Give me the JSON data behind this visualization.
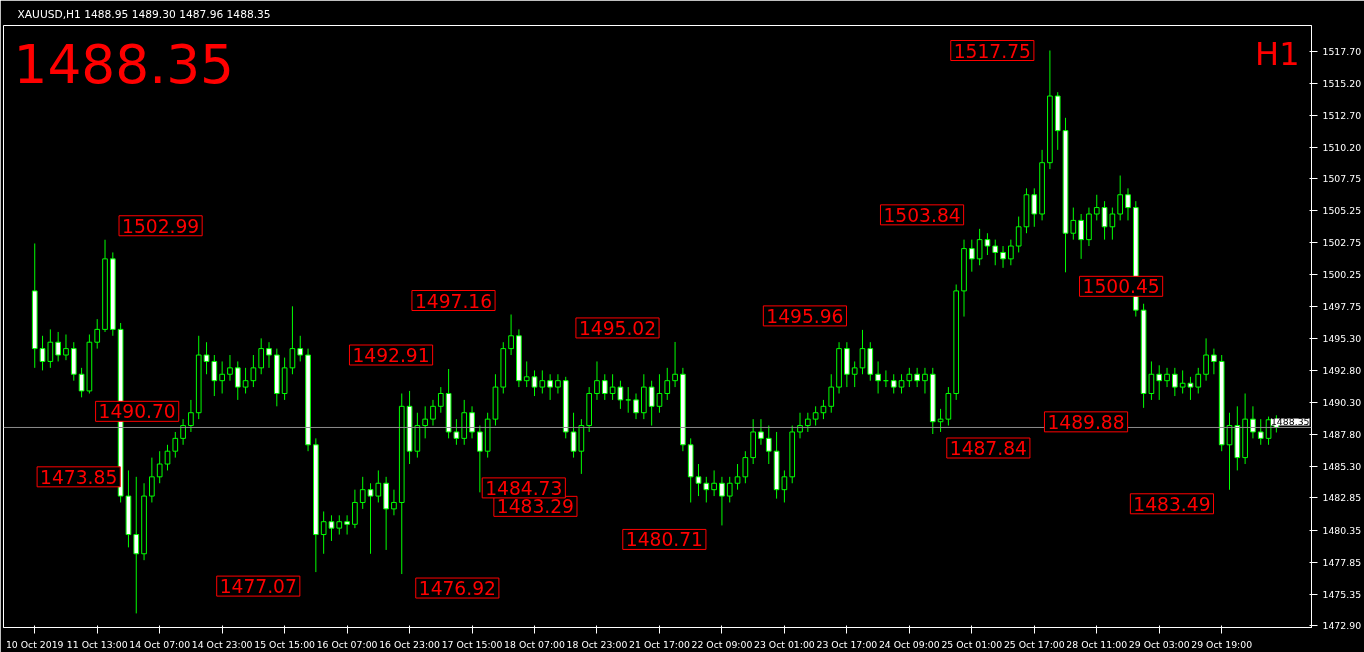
{
  "chart_data": {
    "type": "candlestick",
    "title": "XAUUSD,H1  1488.95 1489.30 1487.96 1488.35",
    "color": "#00ff00",
    "categories": [
      "10 Oct 2019",
      null,
      null,
      null,
      null,
      null,
      null,
      null,
      "11 Oct 13:00",
      null,
      null,
      null,
      null,
      null,
      null,
      null,
      "14 Oct 07:00",
      null,
      null,
      null,
      null,
      null,
      null,
      null,
      "14 Oct 23:00",
      null,
      null,
      null,
      null,
      null,
      null,
      null,
      "15 Oct 15:00",
      null,
      null,
      null,
      null,
      null,
      null,
      null,
      "16 Oct 07:00",
      null,
      null,
      null,
      null,
      null,
      null,
      null,
      "16 Oct 23:00",
      null,
      null,
      null,
      null,
      null,
      null,
      null,
      "17 Oct 15:00",
      null,
      null,
      null,
      null,
      null,
      null,
      null,
      "18 Oct 07:00",
      null,
      null,
      null,
      null,
      null,
      null,
      null,
      "18 Oct 23:00",
      null,
      null,
      null,
      null,
      null,
      null,
      null,
      "21 Oct 17:00",
      null,
      null,
      null,
      null,
      null,
      null,
      null,
      "22 Oct 09:00",
      null,
      null,
      null,
      null,
      null,
      null,
      null,
      "23 Oct 01:00",
      null,
      null,
      null,
      null,
      null,
      null,
      null,
      "23 Oct 17:00",
      null,
      null,
      null,
      null,
      null,
      null,
      null,
      "24 Oct 09:00",
      null,
      null,
      null,
      null,
      null,
      null,
      null,
      "25 Oct 01:00",
      null,
      null,
      null,
      null,
      null,
      null,
      null,
      "25 Oct 17:00",
      null,
      null,
      null,
      null,
      null,
      null,
      null,
      "28 Oct 11:00",
      null,
      null,
      null,
      null,
      null,
      null,
      null,
      "29 Oct 03:00",
      null,
      null,
      null,
      null,
      null,
      null,
      null,
      "29 Oct 19:00",
      null,
      null,
      null,
      null,
      null,
      null,
      null
    ],
    "ylim": [
      1472.75,
      1519.7
    ],
    "yticks": [
      {
        "value": 1517.7,
        "label": "1517.70"
      },
      {
        "value": 1515.2,
        "label": "1515.20"
      },
      {
        "value": 1512.7,
        "label": "1512.70"
      },
      {
        "value": 1510.2,
        "label": "1510.20"
      },
      {
        "value": 1507.75,
        "label": "1507.75"
      },
      {
        "value": 1505.25,
        "label": "1505.25"
      },
      {
        "value": 1502.75,
        "label": "1502.75"
      },
      {
        "value": 1500.25,
        "label": "1500.25"
      },
      {
        "value": 1497.75,
        "label": "1497.75"
      },
      {
        "value": 1495.3,
        "label": "1495.30"
      },
      {
        "value": 1492.8,
        "label": "1492.80"
      },
      {
        "value": 1490.3,
        "label": "1490.30"
      },
      {
        "value": 1487.8,
        "label": "1487.80"
      },
      {
        "value": 1485.3,
        "label": "1485.30"
      },
      {
        "value": 1482.85,
        "label": "1482.85"
      },
      {
        "value": 1480.35,
        "label": "1480.35"
      },
      {
        "value": 1477.85,
        "label": "1477.85"
      },
      {
        "value": 1475.35,
        "label": "1475.35"
      },
      {
        "value": 1472.9,
        "label": "1472.90"
      }
    ],
    "ref_lines": [
      {
        "axis": "y",
        "value": 1488.35,
        "label": "1488.35",
        "color": "#8c8c8c"
      }
    ],
    "annotations": [
      "1488.35",
      "H1",
      "1490.70",
      "1502.99",
      "1473.85",
      "1477.07",
      "1476.92",
      "1492.91",
      "1483.29",
      "1497.16",
      "1484.73",
      "1495.02",
      "1480.71",
      "1495.96",
      "1487.84",
      "1503.84",
      "1517.75",
      "1500.45",
      "1489.88",
      "1483.49"
    ],
    "ohlc": [
      [
        1499.0,
        1502.7,
        1493.0,
        1494.5
      ],
      [
        1494.5,
        1495.5,
        1492.8,
        1493.5
      ],
      [
        1493.5,
        1496.0,
        1493.0,
        1495.0
      ],
      [
        1495.0,
        1495.8,
        1493.5,
        1494.0
      ],
      [
        1494.0,
        1495.6,
        1493.6,
        1494.5
      ],
      [
        1494.5,
        1495.0,
        1492.0,
        1492.5
      ],
      [
        1492.5,
        1493.0,
        1490.7,
        1491.2
      ],
      [
        1491.2,
        1495.6,
        1491.0,
        1495.0
      ],
      [
        1495.0,
        1496.8,
        1494.5,
        1496.0
      ],
      [
        1496.0,
        1502.99,
        1495.8,
        1501.5
      ],
      [
        1501.5,
        1502.0,
        1495.5,
        1496.0
      ],
      [
        1496.0,
        1496.5,
        1482.5,
        1483.0
      ],
      [
        1483.0,
        1485.0,
        1479.0,
        1480.0
      ],
      [
        1480.0,
        1484.5,
        1473.85,
        1478.5
      ],
      [
        1478.5,
        1484.0,
        1478.0,
        1483.0
      ],
      [
        1483.0,
        1486.0,
        1482.5,
        1484.5
      ],
      [
        1484.5,
        1486.5,
        1484.0,
        1485.5
      ],
      [
        1485.5,
        1487.0,
        1485.0,
        1486.5
      ],
      [
        1486.5,
        1488.0,
        1486.0,
        1487.5
      ],
      [
        1487.5,
        1489.0,
        1487.0,
        1488.5
      ],
      [
        1488.5,
        1490.5,
        1488.0,
        1489.5
      ],
      [
        1489.5,
        1495.5,
        1489.0,
        1494.0
      ],
      [
        1494.0,
        1495.0,
        1492.5,
        1493.5
      ],
      [
        1493.5,
        1494.0,
        1490.8,
        1492.0
      ],
      [
        1492.0,
        1493.5,
        1491.0,
        1492.5
      ],
      [
        1492.5,
        1494.0,
        1492.0,
        1493.0
      ],
      [
        1493.0,
        1493.5,
        1490.5,
        1491.5
      ],
      [
        1491.5,
        1493.0,
        1491.0,
        1492.0
      ],
      [
        1492.0,
        1494.0,
        1491.5,
        1493.0
      ],
      [
        1493.0,
        1495.3,
        1492.5,
        1494.5
      ],
      [
        1494.5,
        1495.0,
        1493.0,
        1494.0
      ],
      [
        1494.0,
        1494.5,
        1490.0,
        1491.0
      ],
      [
        1491.0,
        1493.8,
        1490.5,
        1493.0
      ],
      [
        1493.0,
        1497.8,
        1492.5,
        1494.5
      ],
      [
        1494.5,
        1495.5,
        1493.5,
        1494.0
      ],
      [
        1494.0,
        1494.5,
        1486.5,
        1487.0
      ],
      [
        1487.0,
        1487.5,
        1477.07,
        1480.0
      ],
      [
        1480.0,
        1481.8,
        1478.5,
        1481.0
      ],
      [
        1481.0,
        1481.5,
        1479.5,
        1480.5
      ],
      [
        1480.5,
        1481.5,
        1480.0,
        1481.0
      ],
      [
        1481.0,
        1481.5,
        1480.0,
        1480.8
      ],
      [
        1480.8,
        1483.5,
        1480.5,
        1482.5
      ],
      [
        1482.5,
        1484.5,
        1482.0,
        1483.5
      ],
      [
        1483.5,
        1484.0,
        1478.5,
        1483.0
      ],
      [
        1483.0,
        1485.0,
        1482.5,
        1484.0
      ],
      [
        1484.0,
        1484.5,
        1478.8,
        1482.0
      ],
      [
        1482.0,
        1483.5,
        1481.5,
        1482.5
      ],
      [
        1482.5,
        1491.0,
        1476.92,
        1490.0
      ],
      [
        1490.0,
        1491.2,
        1485.5,
        1486.5
      ],
      [
        1486.5,
        1489.5,
        1486.0,
        1488.5
      ],
      [
        1488.5,
        1490.0,
        1487.5,
        1489.0
      ],
      [
        1489.0,
        1490.5,
        1488.5,
        1490.0
      ],
      [
        1490.0,
        1491.5,
        1489.5,
        1491.0
      ],
      [
        1491.0,
        1492.91,
        1487.5,
        1488.0
      ],
      [
        1488.0,
        1489.0,
        1487.0,
        1487.5
      ],
      [
        1487.5,
        1490.5,
        1487.0,
        1489.5
      ],
      [
        1489.5,
        1490.0,
        1487.5,
        1488.0
      ],
      [
        1488.0,
        1488.5,
        1483.29,
        1486.5
      ],
      [
        1486.5,
        1489.5,
        1486.0,
        1489.0
      ],
      [
        1489.0,
        1492.5,
        1488.5,
        1491.5
      ],
      [
        1491.5,
        1495.0,
        1491.0,
        1494.5
      ],
      [
        1494.5,
        1497.16,
        1494.0,
        1495.5
      ],
      [
        1495.5,
        1496.0,
        1491.5,
        1492.0
      ],
      [
        1492.0,
        1493.5,
        1491.5,
        1492.3
      ],
      [
        1492.3,
        1492.8,
        1490.8,
        1491.5
      ],
      [
        1491.5,
        1492.8,
        1491.0,
        1492.0
      ],
      [
        1492.0,
        1492.5,
        1490.5,
        1491.5
      ],
      [
        1491.5,
        1492.5,
        1491.0,
        1492.0
      ],
      [
        1492.0,
        1492.3,
        1487.5,
        1488.0
      ],
      [
        1488.0,
        1489.5,
        1486.0,
        1486.5
      ],
      [
        1486.5,
        1489.0,
        1484.73,
        1488.5
      ],
      [
        1488.5,
        1491.5,
        1488.0,
        1491.0
      ],
      [
        1491.0,
        1493.5,
        1490.5,
        1492.0
      ],
      [
        1492.0,
        1492.5,
        1490.5,
        1491.0
      ],
      [
        1491.0,
        1492.5,
        1490.5,
        1491.5
      ],
      [
        1491.5,
        1492.0,
        1489.8,
        1490.5
      ],
      [
        1490.5,
        1491.5,
        1489.5,
        1490.5
      ],
      [
        1490.5,
        1491.0,
        1489.0,
        1489.5
      ],
      [
        1489.5,
        1492.5,
        1489.0,
        1491.5
      ],
      [
        1491.5,
        1492.0,
        1488.5,
        1490.0
      ],
      [
        1490.0,
        1492.5,
        1489.5,
        1491.0
      ],
      [
        1491.0,
        1493.0,
        1490.5,
        1492.0
      ],
      [
        1492.0,
        1495.02,
        1491.5,
        1492.5
      ],
      [
        1492.5,
        1493.0,
        1486.5,
        1487.0
      ],
      [
        1487.0,
        1487.5,
        1482.5,
        1484.5
      ],
      [
        1484.5,
        1485.5,
        1483.0,
        1484.0
      ],
      [
        1484.0,
        1484.5,
        1482.5,
        1483.5
      ],
      [
        1483.5,
        1485.0,
        1483.0,
        1484.0
      ],
      [
        1484.0,
        1484.5,
        1480.71,
        1483.0
      ],
      [
        1483.0,
        1484.5,
        1482.5,
        1484.0
      ],
      [
        1484.0,
        1485.5,
        1483.5,
        1484.5
      ],
      [
        1484.5,
        1486.5,
        1484.0,
        1486.0
      ],
      [
        1486.0,
        1489.0,
        1485.5,
        1488.0
      ],
      [
        1488.0,
        1489.0,
        1487.0,
        1487.5
      ],
      [
        1487.5,
        1488.5,
        1485.5,
        1486.5
      ],
      [
        1486.5,
        1488.0,
        1482.8,
        1483.5
      ],
      [
        1483.5,
        1485.0,
        1482.5,
        1484.5
      ],
      [
        1484.5,
        1488.5,
        1484.0,
        1488.0
      ],
      [
        1488.0,
        1489.5,
        1487.5,
        1488.5
      ],
      [
        1488.5,
        1489.5,
        1488.0,
        1489.0
      ],
      [
        1489.0,
        1490.0,
        1488.5,
        1489.5
      ],
      [
        1489.5,
        1490.5,
        1489.0,
        1490.0
      ],
      [
        1490.0,
        1492.5,
        1489.5,
        1491.5
      ],
      [
        1491.5,
        1495.0,
        1491.0,
        1494.5
      ],
      [
        1494.5,
        1495.0,
        1491.5,
        1492.5
      ],
      [
        1492.5,
        1493.5,
        1491.5,
        1493.0
      ],
      [
        1493.0,
        1495.96,
        1492.5,
        1494.5
      ],
      [
        1494.5,
        1495.0,
        1492.0,
        1492.5
      ],
      [
        1492.5,
        1493.5,
        1491.0,
        1492.0
      ],
      [
        1492.0,
        1492.8,
        1491.5,
        1492.0
      ],
      [
        1492.0,
        1492.5,
        1491.0,
        1491.5
      ],
      [
        1491.5,
        1492.5,
        1491.0,
        1492.0
      ],
      [
        1492.0,
        1493.0,
        1491.5,
        1492.5
      ],
      [
        1492.5,
        1493.0,
        1491.5,
        1492.0
      ],
      [
        1492.0,
        1493.0,
        1491.0,
        1492.5
      ],
      [
        1492.5,
        1493.0,
        1487.84,
        1488.8
      ],
      [
        1488.8,
        1489.8,
        1488.0,
        1489.0
      ],
      [
        1489.0,
        1491.5,
        1488.5,
        1491.0
      ],
      [
        1491.0,
        1499.5,
        1490.5,
        1499.0
      ],
      [
        1499.0,
        1503.0,
        1497.0,
        1502.3
      ],
      [
        1502.3,
        1503.0,
        1500.5,
        1501.5
      ],
      [
        1501.5,
        1503.84,
        1501.0,
        1503.0
      ],
      [
        1503.0,
        1503.5,
        1501.8,
        1502.5
      ],
      [
        1502.5,
        1503.0,
        1501.0,
        1502.0
      ],
      [
        1502.0,
        1502.5,
        1500.8,
        1501.5
      ],
      [
        1501.5,
        1503.0,
        1501.0,
        1502.5
      ],
      [
        1502.5,
        1504.8,
        1502.0,
        1504.0
      ],
      [
        1504.0,
        1507.0,
        1503.5,
        1506.5
      ],
      [
        1506.5,
        1507.0,
        1504.0,
        1505.0
      ],
      [
        1505.0,
        1510.0,
        1504.5,
        1509.0
      ],
      [
        1509.0,
        1517.75,
        1508.5,
        1514.2
      ],
      [
        1514.2,
        1514.5,
        1510.0,
        1511.5
      ],
      [
        1511.5,
        1512.5,
        1500.45,
        1503.5
      ],
      [
        1503.5,
        1505.5,
        1503.0,
        1504.5
      ],
      [
        1504.5,
        1505.0,
        1501.5,
        1503.0
      ],
      [
        1503.0,
        1505.5,
        1502.5,
        1505.0
      ],
      [
        1505.0,
        1506.5,
        1504.5,
        1505.5
      ],
      [
        1505.5,
        1506.0,
        1503.0,
        1504.0
      ],
      [
        1504.0,
        1505.5,
        1503.0,
        1505.0
      ],
      [
        1505.0,
        1508.0,
        1504.5,
        1506.5
      ],
      [
        1506.5,
        1507.0,
        1504.5,
        1505.5
      ],
      [
        1505.5,
        1506.0,
        1497.0,
        1497.5
      ],
      [
        1497.5,
        1498.0,
        1489.88,
        1491.0
      ],
      [
        1491.0,
        1493.5,
        1490.5,
        1492.5
      ],
      [
        1492.5,
        1493.2,
        1490.5,
        1492.0
      ],
      [
        1492.0,
        1493.0,
        1491.5,
        1492.5
      ],
      [
        1492.5,
        1493.0,
        1490.8,
        1491.5
      ],
      [
        1491.5,
        1492.8,
        1491.0,
        1491.8
      ],
      [
        1491.8,
        1492.3,
        1490.5,
        1491.5
      ],
      [
        1491.5,
        1493.0,
        1491.0,
        1492.5
      ],
      [
        1492.5,
        1495.3,
        1492.0,
        1494.0
      ],
      [
        1494.0,
        1494.5,
        1492.5,
        1493.5
      ],
      [
        1493.5,
        1494.0,
        1486.5,
        1487.0
      ],
      [
        1487.0,
        1489.5,
        1483.49,
        1488.5
      ],
      [
        1488.5,
        1490.0,
        1485.0,
        1486.0
      ],
      [
        1486.0,
        1491.0,
        1485.5,
        1489.0
      ],
      [
        1489.0,
        1490.0,
        1487.5,
        1488.0
      ],
      [
        1488.0,
        1489.0,
        1487.0,
        1487.5
      ],
      [
        1487.5,
        1489.2,
        1487.0,
        1488.95
      ],
      [
        1488.95,
        1489.3,
        1487.96,
        1488.35
      ]
    ]
  }
}
